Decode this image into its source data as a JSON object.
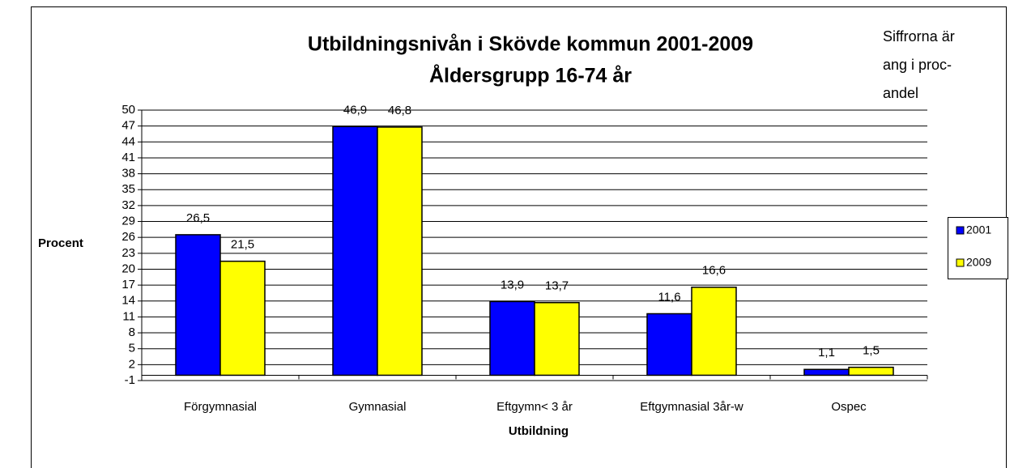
{
  "chart_data": {
    "type": "bar",
    "title": [
      "Utbildningsnivån i Skövde kommun 2001-2009",
      "Åldersgrupp 16-74 år"
    ],
    "note": [
      "Siffrorna är",
      "ang i proc-",
      "andel"
    ],
    "x_label": "Utbildning",
    "y_label": "Procent",
    "categories": [
      "Förgymnasial",
      "Gymnasial",
      "Eftgymn< 3 år",
      "Eftgymnasial 3år-w",
      "Ospec"
    ],
    "series": [
      {
        "name": "2001",
        "color": "#0000ff",
        "values": [
          26.5,
          46.9,
          13.9,
          11.6,
          1.1
        ],
        "value_labels": [
          "26,5",
          "46,9",
          "13,9",
          "11,6",
          "1,1"
        ]
      },
      {
        "name": "2009",
        "color": "#ffff00",
        "values": [
          21.5,
          46.8,
          13.7,
          16.6,
          1.5
        ],
        "value_labels": [
          "21,5",
          "46,8",
          "13,7",
          "16,6",
          "1,5"
        ]
      }
    ],
    "ylim": [
      -1,
      50
    ],
    "yticks": [
      -1,
      2,
      5,
      8,
      11,
      14,
      17,
      20,
      23,
      26,
      29,
      32,
      35,
      38,
      41,
      44,
      47,
      50
    ],
    "grid": true,
    "legend": "right"
  }
}
